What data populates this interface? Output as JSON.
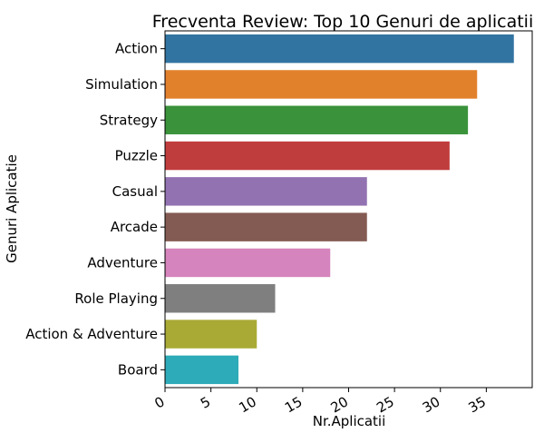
{
  "chart_data": {
    "type": "bar",
    "orientation": "horizontal",
    "title": "Frecventa Review: Top 10 Genuri de aplicatii",
    "xlabel": "Nr.Aplicatii",
    "ylabel": "Genuri Aplicatie",
    "categories": [
      "Action",
      "Simulation",
      "Strategy",
      "Puzzle",
      "Casual",
      "Arcade",
      "Adventure",
      "Role Playing",
      "Action & Adventure",
      "Board"
    ],
    "values": [
      38,
      34,
      33,
      31,
      22,
      22,
      18,
      12,
      10,
      8
    ],
    "colors": [
      "#3274a1",
      "#e1812c",
      "#3a923a",
      "#c03d3e",
      "#9372b2",
      "#845b53",
      "#d684bd",
      "#7f7f7f",
      "#a9aa35",
      "#2eabb8"
    ],
    "xlim": [
      0,
      40
    ],
    "xticks": [
      "0",
      "5",
      "10",
      "15",
      "20",
      "25",
      "30",
      "35"
    ],
    "grid": false,
    "legend": "none"
  }
}
